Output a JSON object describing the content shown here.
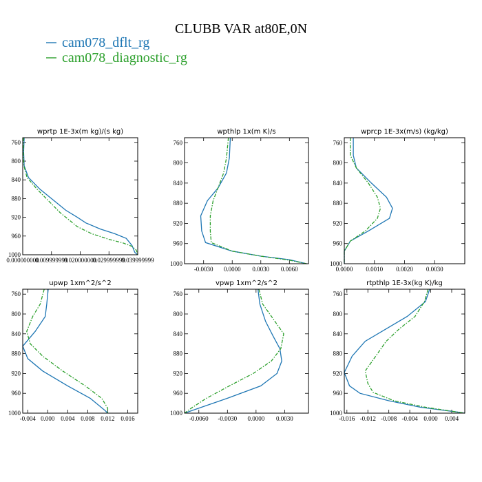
{
  "title": "CLUBB VAR at80E,0N",
  "legend": [
    {
      "label": "cam078_dflt_rg",
      "color": "#1f77b4",
      "dash": "solid"
    },
    {
      "label": "cam078_diagnostic_rg",
      "color": "#2ca02c",
      "dash": "dashdot"
    }
  ],
  "chart_data": [
    {
      "type": "line",
      "title": "wprtp   1E-3x(m kg)/(s kg)",
      "xlim": [
        0.0,
        0.04
      ],
      "ylim": [
        1000,
        750
      ],
      "xticks": [
        0.0,
        0.01,
        0.02,
        0.03,
        0.04
      ],
      "xtick_labels": [
        "0.000000000",
        "0.009999999",
        "0.020000000",
        "0.029999999",
        "0.039999999"
      ],
      "yticks": [
        760,
        800,
        840,
        880,
        920,
        960,
        1000
      ],
      "series": [
        {
          "name": "cam078_dflt_rg",
          "points": [
            [
              0.0005,
              750
            ],
            [
              0.0003,
              780
            ],
            [
              0.0005,
              810
            ],
            [
              0.002,
              835
            ],
            [
              0.006,
              860
            ],
            [
              0.011,
              885
            ],
            [
              0.015,
              905
            ],
            [
              0.019,
              920
            ],
            [
              0.022,
              932
            ],
            [
              0.027,
              945
            ],
            [
              0.032,
              955
            ],
            [
              0.036,
              965
            ],
            [
              0.038,
              980
            ],
            [
              0.039,
              995
            ],
            [
              0.04,
              1000
            ]
          ]
        },
        {
          "name": "cam078_diagnostic_rg",
          "points": [
            [
              0.0003,
              750
            ],
            [
              0.0002,
              780
            ],
            [
              0.0004,
              810
            ],
            [
              0.0015,
              835
            ],
            [
              0.005,
              860
            ],
            [
              0.009,
              885
            ],
            [
              0.013,
              910
            ],
            [
              0.016,
              925
            ],
            [
              0.019,
              940
            ],
            [
              0.024,
              955
            ],
            [
              0.03,
              967
            ],
            [
              0.035,
              975
            ],
            [
              0.038,
              982
            ],
            [
              0.0395,
              990
            ],
            [
              0.04,
              1000
            ]
          ]
        }
      ]
    },
    {
      "type": "line",
      "title": "wpthlp   1x(m K)/s",
      "xlim": [
        -0.005,
        0.008
      ],
      "ylim": [
        1000,
        750
      ],
      "xticks": [
        -0.003,
        0.0,
        0.003,
        0.006
      ],
      "xtick_labels": [
        "-0.0030",
        "0.0000",
        "0.0030",
        "0.0060"
      ],
      "yticks": [
        760,
        800,
        840,
        880,
        920,
        960,
        1000
      ],
      "series": [
        {
          "name": "cam078_dflt_rg",
          "points": [
            [
              -0.0002,
              750
            ],
            [
              -0.0003,
              790
            ],
            [
              -0.0006,
              820
            ],
            [
              -0.0015,
              850
            ],
            [
              -0.0026,
              875
            ],
            [
              -0.0033,
              905
            ],
            [
              -0.0032,
              935
            ],
            [
              -0.0028,
              958
            ],
            [
              0.0,
              975
            ],
            [
              0.003,
              985
            ],
            [
              0.006,
              992
            ],
            [
              0.0078,
              1000
            ]
          ]
        },
        {
          "name": "cam078_diagnostic_rg",
          "points": [
            [
              -0.0004,
              750
            ],
            [
              -0.0006,
              790
            ],
            [
              -0.0009,
              820
            ],
            [
              -0.0015,
              850
            ],
            [
              -0.002,
              875
            ],
            [
              -0.0023,
              905
            ],
            [
              -0.0023,
              935
            ],
            [
              -0.0022,
              958
            ],
            [
              0.0,
              975
            ],
            [
              0.003,
              985
            ],
            [
              0.006,
              993
            ],
            [
              0.0078,
              1000
            ]
          ]
        }
      ]
    },
    {
      "type": "line",
      "title": "wprcp   1E-3x(m/s) (kg/kg)",
      "xlim": [
        0.0,
        0.004
      ],
      "ylim": [
        1000,
        750
      ],
      "xticks": [
        0.0,
        0.001,
        0.002,
        0.003
      ],
      "xtick_labels": [
        "0.0000",
        "0.0010",
        "0.0020",
        "0.0030"
      ],
      "yticks": [
        760,
        800,
        840,
        880,
        920,
        960,
        1000
      ],
      "series": [
        {
          "name": "cam078_dflt_rg",
          "points": [
            [
              0.0003,
              750
            ],
            [
              0.0003,
              785
            ],
            [
              0.0004,
              810
            ],
            [
              0.0009,
              840
            ],
            [
              0.0014,
              868
            ],
            [
              0.0016,
              890
            ],
            [
              0.0015,
              910
            ],
            [
              0.0008,
              935
            ],
            [
              0.0002,
              955
            ],
            [
              0.0,
              975
            ],
            [
              0.0,
              1000
            ]
          ]
        },
        {
          "name": "cam078_diagnostic_rg",
          "points": [
            [
              0.0002,
              750
            ],
            [
              0.0002,
              785
            ],
            [
              0.0004,
              810
            ],
            [
              0.0008,
              840
            ],
            [
              0.0011,
              868
            ],
            [
              0.0012,
              890
            ],
            [
              0.0011,
              910
            ],
            [
              0.0007,
              935
            ],
            [
              0.0002,
              955
            ],
            [
              0.0,
              975
            ],
            [
              0.0,
              1000
            ]
          ]
        }
      ]
    },
    {
      "type": "line",
      "title": "upwp   1xm^2/s^2",
      "xlim": [
        -0.005,
        0.018
      ],
      "ylim": [
        1000,
        750
      ],
      "xticks": [
        -0.004,
        0.0,
        0.004,
        0.008,
        0.012,
        0.016
      ],
      "xtick_labels": [
        "-0.004",
        "0.000",
        "0.004",
        "0.008",
        "0.012",
        "0.016"
      ],
      "yticks": [
        760,
        800,
        840,
        880,
        920,
        960,
        1000
      ],
      "series": [
        {
          "name": "cam078_dflt_rg",
          "points": [
            [
              0.0001,
              750
            ],
            [
              -0.0002,
              780
            ],
            [
              -0.0005,
              805
            ],
            [
              -0.0025,
              835
            ],
            [
              -0.005,
              865
            ],
            [
              -0.004,
              890
            ],
            [
              -0.001,
              915
            ],
            [
              0.004,
              945
            ],
            [
              0.0085,
              970
            ],
            [
              0.0115,
              995
            ],
            [
              0.012,
              1000
            ]
          ]
        },
        {
          "name": "cam078_diagnostic_rg",
          "points": [
            [
              -0.0007,
              750
            ],
            [
              -0.0015,
              780
            ],
            [
              -0.003,
              805
            ],
            [
              -0.0042,
              835
            ],
            [
              -0.0035,
              860
            ],
            [
              -0.001,
              885
            ],
            [
              0.003,
              915
            ],
            [
              0.0075,
              945
            ],
            [
              0.0108,
              970
            ],
            [
              0.012,
              990
            ],
            [
              0.012,
              1000
            ]
          ]
        }
      ]
    },
    {
      "type": "line",
      "title": "vpwp   1xm^2/s^2",
      "xlim": [
        -0.0075,
        0.0055
      ],
      "ylim": [
        1000,
        750
      ],
      "xticks": [
        -0.006,
        -0.003,
        0.0,
        0.003
      ],
      "xtick_labels": [
        "-0.0060",
        "-0.0030",
        "0.0000",
        "0.0030"
      ],
      "yticks": [
        760,
        800,
        840,
        880,
        920,
        960,
        1000
      ],
      "series": [
        {
          "name": "cam078_dflt_rg",
          "points": [
            [
              0.0002,
              750
            ],
            [
              0.0004,
              780
            ],
            [
              0.001,
              815
            ],
            [
              0.0018,
              845
            ],
            [
              0.0025,
              870
            ],
            [
              0.0027,
              895
            ],
            [
              0.0022,
              920
            ],
            [
              0.0005,
              945
            ],
            [
              -0.003,
              970
            ],
            [
              -0.006,
              990
            ],
            [
              -0.0075,
              1000
            ]
          ]
        },
        {
          "name": "cam078_diagnostic_rg",
          "points": [
            [
              0.0003,
              750
            ],
            [
              0.0007,
              780
            ],
            [
              0.0018,
              810
            ],
            [
              0.0029,
              840
            ],
            [
              0.0026,
              870
            ],
            [
              0.0016,
              895
            ],
            [
              -0.0003,
              920
            ],
            [
              -0.0028,
              945
            ],
            [
              -0.0052,
              970
            ],
            [
              -0.0068,
              990
            ],
            [
              -0.0075,
              1000
            ]
          ]
        }
      ]
    },
    {
      "type": "line",
      "title": "rtpthlp   1E-3x(kg K)/kg",
      "xlim": [
        -0.0165,
        0.0065
      ],
      "ylim": [
        1000,
        750
      ],
      "xticks": [
        -0.016,
        -0.012,
        -0.008,
        -0.004,
        0.0,
        0.004
      ],
      "xtick_labels": [
        "-0.016",
        "-0.012",
        "-0.008",
        "-0.004",
        "0.000",
        "0.004"
      ],
      "yticks": [
        760,
        800,
        840,
        880,
        920,
        960,
        1000
      ],
      "series": [
        {
          "name": "cam078_dflt_rg",
          "points": [
            [
              -0.0002,
              750
            ],
            [
              -0.001,
              775
            ],
            [
              -0.0045,
              805
            ],
            [
              -0.0085,
              830
            ],
            [
              -0.0125,
              855
            ],
            [
              -0.015,
              885
            ],
            [
              -0.0165,
              918
            ],
            [
              -0.0155,
              945
            ],
            [
              -0.0135,
              960
            ],
            [
              -0.008,
              975
            ],
            [
              -0.002,
              988
            ],
            [
              0.0045,
              997
            ],
            [
              0.0065,
              1000
            ]
          ]
        },
        {
          "name": "cam078_diagnostic_rg",
          "points": [
            [
              -0.0005,
              750
            ],
            [
              -0.0012,
              775
            ],
            [
              -0.003,
              805
            ],
            [
              -0.006,
              830
            ],
            [
              -0.0085,
              855
            ],
            [
              -0.0105,
              885
            ],
            [
              -0.0125,
              915
            ],
            [
              -0.012,
              940
            ],
            [
              -0.011,
              958
            ],
            [
              -0.007,
              975
            ],
            [
              -0.001,
              988
            ],
            [
              0.0045,
              997
            ],
            [
              0.0065,
              1000
            ]
          ]
        }
      ]
    }
  ]
}
